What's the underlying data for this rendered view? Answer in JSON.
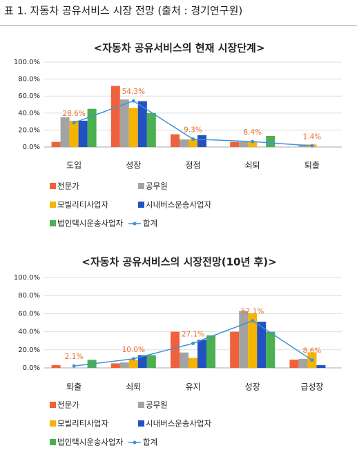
{
  "caption": "표 1. 자동차 공유서비스 시장 전망 (출처 : 경기연구원)",
  "chart_data": [
    {
      "type": "bar",
      "title": "<자동차 공유서비스의 현재 시장단계>",
      "categories": [
        "도입",
        "성장",
        "정점",
        "쇠퇴",
        "퇴출"
      ],
      "ylim": [
        0,
        100
      ],
      "yticks": [
        {
          "value": 0,
          "label": "0.0%"
        },
        {
          "value": 20,
          "label": "20.0%"
        },
        {
          "value": 40,
          "label": "40.0%"
        },
        {
          "value": 60,
          "label": "60.0%"
        },
        {
          "value": 80,
          "label": "80.0%"
        },
        {
          "value": 100,
          "label": "100.0%"
        }
      ],
      "grid": true,
      "series": [
        {
          "name": "전문가",
          "color": "#f0603a",
          "values": [
            6,
            72,
            15,
            6,
            0
          ]
        },
        {
          "name": "공무원",
          "color": "#a3a3a3",
          "values": [
            35,
            56,
            9,
            6,
            3
          ]
        },
        {
          "name": "모빌리티사업자",
          "color": "#f5b400",
          "values": [
            31,
            46,
            9,
            6,
            3
          ]
        },
        {
          "name": "시내버스운송사업자",
          "color": "#2152c2",
          "values": [
            31,
            54,
            14,
            0,
            0
          ]
        },
        {
          "name": "법인택시운송사업자",
          "color": "#4caf50",
          "values": [
            45,
            40,
            0,
            13,
            0
          ]
        },
        {
          "name": "합계",
          "color": "#3f93d8",
          "type": "line",
          "values": [
            28.6,
            54.3,
            9.3,
            6.4,
            1.4
          ],
          "value_labels": [
            "28.6%",
            "54.3%",
            "9.3%",
            "6.4%",
            "1.4%"
          ]
        }
      ]
    },
    {
      "type": "bar",
      "title": "<자동차 공유서비스의 시장전망(10년 후)>",
      "categories": [
        "퇴출",
        "쇠퇴",
        "유지",
        "성장",
        "급성장"
      ],
      "ylim": [
        0,
        100
      ],
      "yticks": [
        {
          "value": 0,
          "label": "0.0%"
        },
        {
          "value": 20,
          "label": "20.0%"
        },
        {
          "value": 40,
          "label": "40.0%"
        },
        {
          "value": 60,
          "label": "60.0%"
        },
        {
          "value": 80,
          "label": "80.0%"
        },
        {
          "value": 100,
          "label": "100.0%"
        }
      ],
      "grid": true,
      "series": [
        {
          "name": "전문가",
          "color": "#f0603a",
          "values": [
            3,
            5,
            40,
            40,
            9
          ]
        },
        {
          "name": "공무원",
          "color": "#a3a3a3",
          "values": [
            0,
            6,
            17,
            63,
            10
          ]
        },
        {
          "name": "모빌리티사업자",
          "color": "#f5b400",
          "values": [
            0,
            9,
            11,
            60,
            17
          ]
        },
        {
          "name": "시내버스운송사업자",
          "color": "#2152c2",
          "values": [
            0,
            14,
            31,
            51,
            3
          ]
        },
        {
          "name": "법인택시운송사업자",
          "color": "#4caf50",
          "values": [
            9,
            14,
            36,
            40,
            0
          ]
        },
        {
          "name": "합계",
          "color": "#3f93d8",
          "type": "line",
          "values": [
            2.1,
            10.0,
            27.1,
            52.1,
            8.6
          ],
          "value_labels": [
            "2.1%",
            "10.0%",
            "27.1%",
            "52.1%",
            "8.6%"
          ]
        }
      ]
    }
  ]
}
